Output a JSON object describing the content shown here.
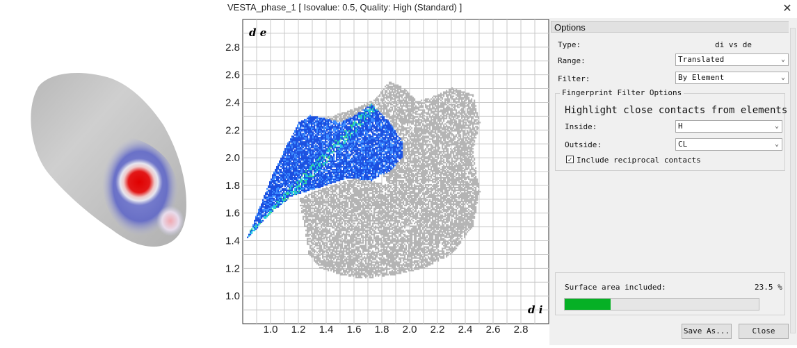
{
  "window": {
    "title": "VESTA_phase_1 [ Isovalue: 0.5, Quality: High (Standard) ]",
    "close_glyph": "✕"
  },
  "surface_view": {
    "description_icon": "hirshfeld-surface-3d"
  },
  "plot": {
    "ylabel": "d e",
    "xlabel": "d i"
  },
  "chart_data": {
    "type": "heatmap",
    "title": "",
    "xlabel": "d i",
    "ylabel": "d e",
    "xlim": [
      0.8,
      3.0
    ],
    "ylim": [
      0.8,
      3.0
    ],
    "x_ticks": [
      "1.0",
      "1.2",
      "1.4",
      "1.6",
      "1.8",
      "2.0",
      "2.2",
      "2.4",
      "2.6",
      "2.8"
    ],
    "y_ticks": [
      "1.0",
      "1.2",
      "1.4",
      "1.6",
      "1.8",
      "2.0",
      "2.2",
      "2.4",
      "2.6",
      "2.8"
    ],
    "grid": true,
    "gray_region_outline": [
      [
        1.2,
        1.7
      ],
      [
        1.23,
        1.55
      ],
      [
        1.27,
        1.3
      ],
      [
        1.35,
        1.2
      ],
      [
        1.5,
        1.15
      ],
      [
        1.65,
        1.12
      ],
      [
        1.9,
        1.15
      ],
      [
        2.1,
        1.2
      ],
      [
        2.3,
        1.3
      ],
      [
        2.45,
        1.5
      ],
      [
        2.5,
        1.75
      ],
      [
        2.45,
        2.05
      ],
      [
        2.5,
        2.25
      ],
      [
        2.45,
        2.45
      ],
      [
        2.3,
        2.5
      ],
      [
        2.2,
        2.45
      ],
      [
        2.05,
        2.4
      ],
      [
        1.95,
        2.5
      ],
      [
        1.85,
        2.55
      ],
      [
        1.75,
        2.42
      ],
      [
        1.6,
        2.35
      ],
      [
        1.45,
        2.3
      ],
      [
        1.35,
        2.28
      ],
      [
        1.3,
        2.2
      ],
      [
        1.5,
        2.05
      ],
      [
        1.75,
        1.95
      ],
      [
        1.85,
        1.8
      ],
      [
        1.6,
        1.85
      ],
      [
        1.45,
        1.8
      ],
      [
        1.3,
        1.75
      ]
    ],
    "highlight_region_outline": [
      [
        0.82,
        1.4
      ],
      [
        1.0,
        1.6
      ],
      [
        1.15,
        1.72
      ],
      [
        1.35,
        1.78
      ],
      [
        1.55,
        1.85
      ],
      [
        1.72,
        1.83
      ],
      [
        1.85,
        1.9
      ],
      [
        1.95,
        2.0
      ],
      [
        1.95,
        2.1
      ],
      [
        1.85,
        2.25
      ],
      [
        1.72,
        2.38
      ],
      [
        1.6,
        2.3
      ],
      [
        1.5,
        2.25
      ],
      [
        1.38,
        2.28
      ],
      [
        1.28,
        2.3
      ],
      [
        1.2,
        2.25
      ],
      [
        1.12,
        2.1
      ],
      [
        1.02,
        1.9
      ],
      [
        0.92,
        1.65
      ]
    ],
    "colors": {
      "gray": "#b4b4b4",
      "blue_dense": "#1a4fe0",
      "blue_light": "#3c8cff",
      "cyan": "#22c6e6",
      "green": "#3cd28c"
    }
  },
  "options": {
    "header": "Options",
    "type_label": "Type:",
    "type_value": "di vs de",
    "range_label": "Range:",
    "range_value": "Translated",
    "filter_label": "Filter:",
    "filter_value": "By Element",
    "group_title": "Fingerprint Filter Options",
    "highlight_text": "Highlight close contacts from elements:",
    "inside_label": "Inside:",
    "inside_value": "H",
    "outside_label": "Outside:",
    "outside_value": "CL",
    "reciprocal_label": "Include reciprocal contacts",
    "reciprocal_checked": true,
    "surface_area_label": "Surface area included:",
    "surface_area_value": "23.5 %",
    "surface_area_fraction": 0.235,
    "bar_color": "#06b025",
    "save_as_label": "Save As...",
    "close_label": "Close"
  }
}
